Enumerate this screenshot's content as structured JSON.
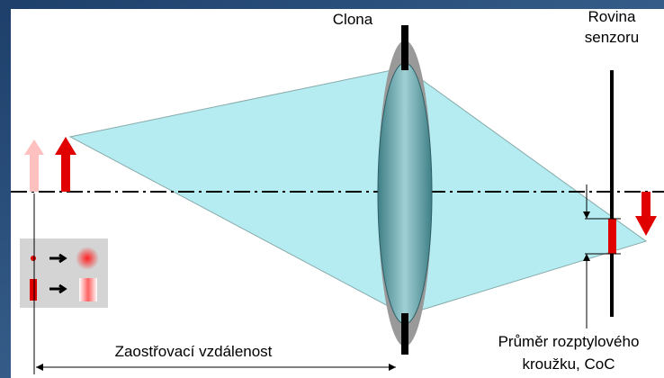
{
  "labels": {
    "aperture": "Clona",
    "sensor_plane": [
      "Rovina",
      "senzoru"
    ],
    "coc": [
      "Průměr rozptylového",
      "kroužku, CoC"
    ],
    "focus_distance": "Zaostřovací vzdálenost"
  }
}
